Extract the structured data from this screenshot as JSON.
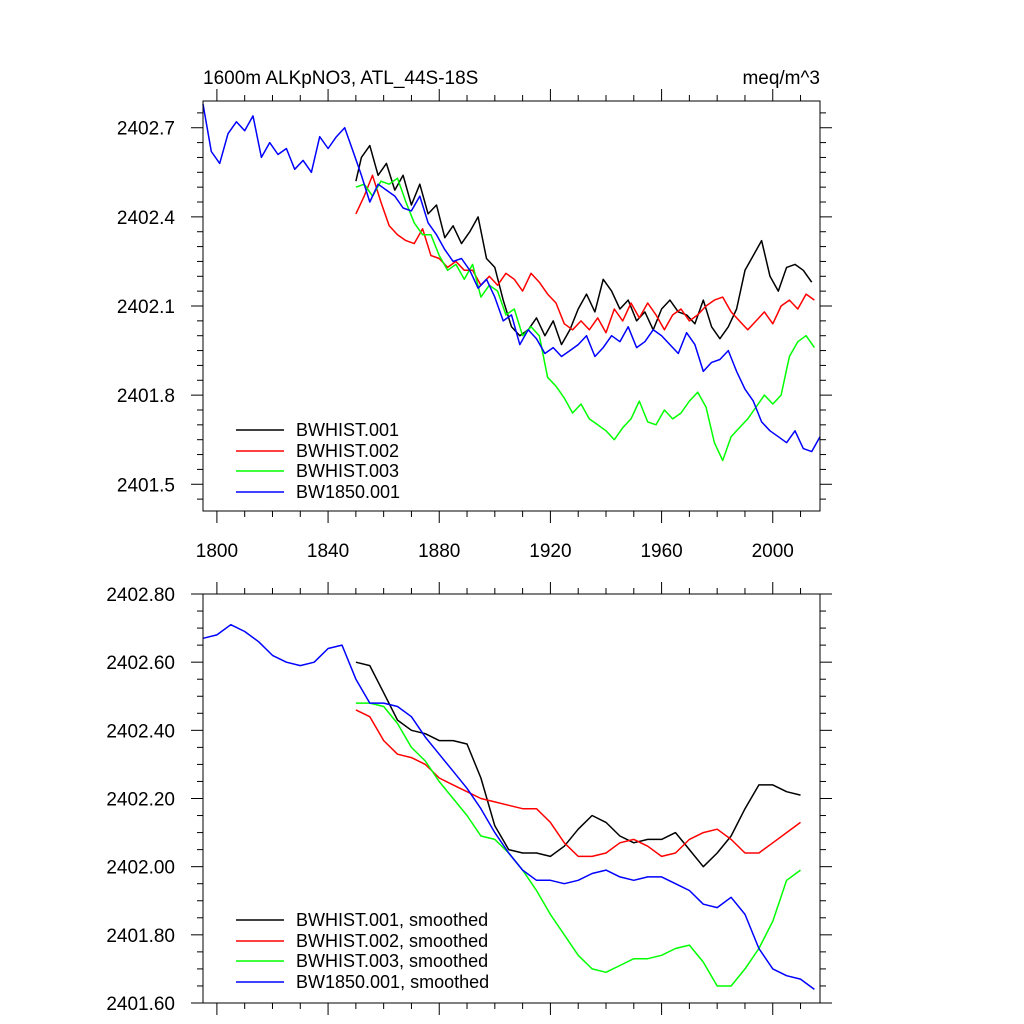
{
  "chart_data": [
    {
      "type": "line",
      "title": "1600m ALKpNO3, ATL_44S-18S",
      "units": "meq/m^3",
      "xlim": [
        1795,
        2017
      ],
      "ylim": [
        2401.41,
        2402.79
      ],
      "x_ticks": [
        1800,
        1840,
        1880,
        1920,
        1960,
        2000
      ],
      "x_tick_labels": [
        "1800",
        "1840",
        "1880",
        "1920",
        "1960",
        "2000"
      ],
      "y_ticks": [
        2401.5,
        2401.8,
        2402.1,
        2402.4,
        2402.7
      ],
      "y_tick_labels": [
        "2401.5",
        "2401.8",
        "2402.1",
        "2402.4",
        "2402.7"
      ],
      "legend_position": "bottom-left",
      "series": [
        {
          "name": "BWHIST.001",
          "color": "#000000",
          "x": [
            1850,
            1852,
            1855,
            1858,
            1861,
            1864,
            1867,
            1870,
            1873,
            1876,
            1879,
            1882,
            1885,
            1888,
            1891,
            1894,
            1897,
            1900,
            1903,
            1906,
            1909,
            1912,
            1915,
            1918,
            1921,
            1924,
            1927,
            1930,
            1933,
            1936,
            1939,
            1942,
            1945,
            1948,
            1951,
            1954,
            1957,
            1960,
            1963,
            1966,
            1969,
            1972,
            1975,
            1978,
            1981,
            1984,
            1987,
            1990,
            1993,
            1996,
            1999,
            2002,
            2005,
            2008,
            2011,
            2014
          ],
          "values": [
            2402.52,
            2402.6,
            2402.64,
            2402.54,
            2402.58,
            2402.49,
            2402.54,
            2402.44,
            2402.51,
            2402.41,
            2402.44,
            2402.33,
            2402.37,
            2402.31,
            2402.35,
            2402.4,
            2402.26,
            2402.23,
            2402.12,
            2402.03,
            2402.0,
            2402.02,
            2402.06,
            2402.0,
            2402.05,
            2401.97,
            2402.02,
            2402.09,
            2402.14,
            2402.08,
            2402.19,
            2402.15,
            2402.09,
            2402.12,
            2402.05,
            2402.08,
            2402.02,
            2402.09,
            2402.12,
            2402.08,
            2402.07,
            2402.04,
            2402.12,
            2402.03,
            2401.99,
            2402.03,
            2402.09,
            2402.22,
            2402.27,
            2402.32,
            2402.2,
            2402.15,
            2402.23,
            2402.24,
            2402.22,
            2402.18
          ]
        },
        {
          "name": "BWHIST.002",
          "color": "#ff0000",
          "x": [
            1850,
            1853,
            1856,
            1859,
            1862,
            1865,
            1868,
            1871,
            1874,
            1877,
            1880,
            1883,
            1886,
            1889,
            1892,
            1895,
            1898,
            1901,
            1904,
            1907,
            1910,
            1913,
            1916,
            1919,
            1922,
            1925,
            1928,
            1931,
            1934,
            1937,
            1940,
            1943,
            1946,
            1949,
            1952,
            1955,
            1958,
            1961,
            1964,
            1967,
            1970,
            1973,
            1976,
            1979,
            1982,
            1985,
            1988,
            1991,
            1994,
            1997,
            2000,
            2003,
            2006,
            2009,
            2012,
            2015
          ],
          "values": [
            2402.41,
            2402.47,
            2402.54,
            2402.45,
            2402.37,
            2402.34,
            2402.32,
            2402.31,
            2402.36,
            2402.27,
            2402.26,
            2402.23,
            2402.25,
            2402.22,
            2402.22,
            2402.17,
            2402.2,
            2402.17,
            2402.21,
            2402.19,
            2402.15,
            2402.21,
            2402.18,
            2402.14,
            2402.11,
            2402.04,
            2402.02,
            2402.05,
            2402.02,
            2402.06,
            2402.01,
            2402.09,
            2402.05,
            2402.11,
            2402.06,
            2402.11,
            2402.07,
            2402.02,
            2402.07,
            2402.09,
            2402.05,
            2402.07,
            2402.1,
            2402.12,
            2402.13,
            2402.08,
            2402.05,
            2402.02,
            2402.05,
            2402.08,
            2402.04,
            2402.1,
            2402.12,
            2402.09,
            2402.14,
            2402.12
          ]
        },
        {
          "name": "BWHIST.003",
          "color": "#00ff00",
          "x": [
            1850,
            1853,
            1856,
            1859,
            1862,
            1865,
            1868,
            1871,
            1874,
            1877,
            1880,
            1883,
            1886,
            1889,
            1892,
            1895,
            1898,
            1901,
            1904,
            1907,
            1910,
            1913,
            1916,
            1919,
            1922,
            1925,
            1928,
            1931,
            1934,
            1937,
            1940,
            1943,
            1946,
            1949,
            1952,
            1955,
            1958,
            1961,
            1964,
            1967,
            1970,
            1973,
            1976,
            1979,
            1982,
            1985,
            1988,
            1991,
            1994,
            1997,
            2000,
            2003,
            2006,
            2009,
            2012,
            2015
          ],
          "values": [
            2402.5,
            2402.51,
            2402.47,
            2402.52,
            2402.51,
            2402.53,
            2402.45,
            2402.38,
            2402.34,
            2402.34,
            2402.27,
            2402.22,
            2402.24,
            2402.19,
            2402.24,
            2402.13,
            2402.17,
            2402.15,
            2402.07,
            2402.09,
            2402.0,
            2402.03,
            2402.0,
            2401.86,
            2401.83,
            2401.79,
            2401.74,
            2401.77,
            2401.72,
            2401.7,
            2401.68,
            2401.65,
            2401.69,
            2401.72,
            2401.78,
            2401.71,
            2401.7,
            2401.75,
            2401.72,
            2401.74,
            2401.78,
            2401.81,
            2401.76,
            2401.64,
            2401.58,
            2401.66,
            2401.69,
            2401.72,
            2401.76,
            2401.8,
            2401.77,
            2401.8,
            2401.93,
            2401.98,
            2402.0,
            2401.96
          ]
        },
        {
          "name": "BW1850.001",
          "color": "#0000ff",
          "x": [
            1795,
            1798,
            1801,
            1804,
            1807,
            1810,
            1813,
            1816,
            1819,
            1822,
            1825,
            1828,
            1831,
            1834,
            1837,
            1840,
            1843,
            1846,
            1849,
            1852,
            1855,
            1858,
            1861,
            1864,
            1867,
            1870,
            1873,
            1876,
            1879,
            1882,
            1885,
            1888,
            1891,
            1894,
            1897,
            1900,
            1903,
            1906,
            1909,
            1912,
            1915,
            1918,
            1921,
            1924,
            1927,
            1930,
            1933,
            1936,
            1939,
            1942,
            1945,
            1948,
            1951,
            1954,
            1957,
            1960,
            1963,
            1966,
            1969,
            1972,
            1975,
            1978,
            1981,
            1984,
            1987,
            1990,
            1993,
            1996,
            1999,
            2002,
            2005,
            2008,
            2011,
            2014,
            2017
          ],
          "values": [
            2402.78,
            2402.62,
            2402.58,
            2402.68,
            2402.72,
            2402.69,
            2402.74,
            2402.6,
            2402.65,
            2402.61,
            2402.63,
            2402.56,
            2402.59,
            2402.55,
            2402.67,
            2402.63,
            2402.67,
            2402.7,
            2402.62,
            2402.54,
            2402.45,
            2402.51,
            2402.49,
            2402.47,
            2402.43,
            2402.42,
            2402.47,
            2402.38,
            2402.34,
            2402.29,
            2402.25,
            2402.26,
            2402.22,
            2402.16,
            2402.19,
            2402.13,
            2402.05,
            2402.07,
            2401.97,
            2402.02,
            2401.99,
            2401.94,
            2401.96,
            2401.93,
            2401.95,
            2401.97,
            2402.0,
            2401.93,
            2401.96,
            2402.0,
            2401.98,
            2402.03,
            2401.96,
            2401.98,
            2402.02,
            2402.0,
            2401.97,
            2401.94,
            2402.01,
            2401.97,
            2401.88,
            2401.91,
            2401.92,
            2401.95,
            2401.88,
            2401.82,
            2401.78,
            2401.71,
            2401.68,
            2401.66,
            2401.64,
            2401.68,
            2401.62,
            2401.61,
            2401.66
          ]
        }
      ]
    },
    {
      "type": "line",
      "title": "",
      "xlim": [
        1795,
        2017
      ],
      "ylim": [
        2401.6,
        2402.8
      ],
      "x_ticks": [
        1800,
        1840,
        1880,
        1920,
        1960,
        2000
      ],
      "x_tick_labels": [],
      "y_ticks": [
        2401.6,
        2401.8,
        2402.0,
        2402.2,
        2402.4,
        2402.6,
        2402.8
      ],
      "y_tick_labels": [
        "2401.60",
        "2401.80",
        "2402.00",
        "2402.20",
        "2402.40",
        "2402.60",
        "2402.80"
      ],
      "legend_position": "bottom-left",
      "series": [
        {
          "name": "BWHIST.001, smoothed",
          "color": "#000000",
          "x": [
            1850,
            1855,
            1860,
            1865,
            1870,
            1875,
            1880,
            1885,
            1890,
            1895,
            1900,
            1905,
            1910,
            1915,
            1920,
            1925,
            1930,
            1935,
            1940,
            1945,
            1950,
            1955,
            1960,
            1965,
            1970,
            1975,
            1980,
            1985,
            1990,
            1995,
            2000,
            2005,
            2010
          ],
          "values": [
            2402.6,
            2402.59,
            2402.51,
            2402.43,
            2402.4,
            2402.39,
            2402.37,
            2402.37,
            2402.36,
            2402.26,
            2402.12,
            2402.05,
            2402.04,
            2402.04,
            2402.03,
            2402.06,
            2402.11,
            2402.15,
            2402.13,
            2402.09,
            2402.07,
            2402.08,
            2402.08,
            2402.1,
            2402.05,
            2402.0,
            2402.04,
            2402.09,
            2402.17,
            2402.24,
            2402.24,
            2402.22,
            2402.21
          ]
        },
        {
          "name": "BWHIST.002, smoothed",
          "color": "#ff0000",
          "x": [
            1850,
            1855,
            1860,
            1865,
            1870,
            1875,
            1880,
            1885,
            1890,
            1895,
            1900,
            1905,
            1910,
            1915,
            1920,
            1925,
            1930,
            1935,
            1940,
            1945,
            1950,
            1955,
            1960,
            1965,
            1970,
            1975,
            1980,
            1985,
            1990,
            1995,
            2000,
            2005,
            2010
          ],
          "values": [
            2402.46,
            2402.44,
            2402.37,
            2402.33,
            2402.32,
            2402.3,
            2402.26,
            2402.24,
            2402.22,
            2402.2,
            2402.19,
            2402.18,
            2402.17,
            2402.17,
            2402.13,
            2402.07,
            2402.03,
            2402.03,
            2402.04,
            2402.07,
            2402.08,
            2402.06,
            2402.03,
            2402.04,
            2402.08,
            2402.1,
            2402.11,
            2402.08,
            2402.04,
            2402.04,
            2402.07,
            2402.1,
            2402.13
          ]
        },
        {
          "name": "BWHIST.003, smoothed",
          "color": "#00ff00",
          "x": [
            1850,
            1855,
            1860,
            1865,
            1870,
            1875,
            1880,
            1885,
            1890,
            1895,
            1900,
            1905,
            1910,
            1915,
            1920,
            1925,
            1930,
            1935,
            1940,
            1945,
            1950,
            1955,
            1960,
            1965,
            1970,
            1975,
            1980,
            1985,
            1990,
            1995,
            2000,
            2005,
            2010
          ],
          "values": [
            2402.48,
            2402.48,
            2402.47,
            2402.42,
            2402.35,
            2402.31,
            2402.25,
            2402.2,
            2402.15,
            2402.09,
            2402.08,
            2402.04,
            2401.99,
            2401.93,
            2401.86,
            2401.8,
            2401.74,
            2401.7,
            2401.69,
            2401.71,
            2401.73,
            2401.73,
            2401.74,
            2401.76,
            2401.77,
            2401.72,
            2401.65,
            2401.65,
            2401.7,
            2401.76,
            2401.84,
            2401.96,
            2401.99
          ]
        },
        {
          "name": "BW1850.001, smoothed",
          "color": "#0000ff",
          "x": [
            1795,
            1800,
            1805,
            1810,
            1815,
            1820,
            1825,
            1830,
            1835,
            1840,
            1845,
            1850,
            1855,
            1860,
            1865,
            1870,
            1875,
            1880,
            1885,
            1890,
            1895,
            1900,
            1905,
            1910,
            1915,
            1920,
            1925,
            1930,
            1935,
            1940,
            1945,
            1950,
            1955,
            1960,
            1965,
            1970,
            1975,
            1980,
            1985,
            1990,
            1995,
            2000,
            2005,
            2010,
            2015
          ],
          "values": [
            2402.67,
            2402.68,
            2402.71,
            2402.69,
            2402.66,
            2402.62,
            2402.6,
            2402.59,
            2402.6,
            2402.64,
            2402.65,
            2402.55,
            2402.48,
            2402.48,
            2402.47,
            2402.44,
            2402.38,
            2402.33,
            2402.28,
            2402.23,
            2402.17,
            2402.1,
            2402.04,
            2401.99,
            2401.96,
            2401.96,
            2401.95,
            2401.96,
            2401.98,
            2401.99,
            2401.97,
            2401.96,
            2401.97,
            2401.97,
            2401.95,
            2401.93,
            2401.89,
            2401.88,
            2401.91,
            2401.86,
            2401.76,
            2401.7,
            2401.68,
            2401.67,
            2401.64
          ]
        }
      ]
    }
  ]
}
